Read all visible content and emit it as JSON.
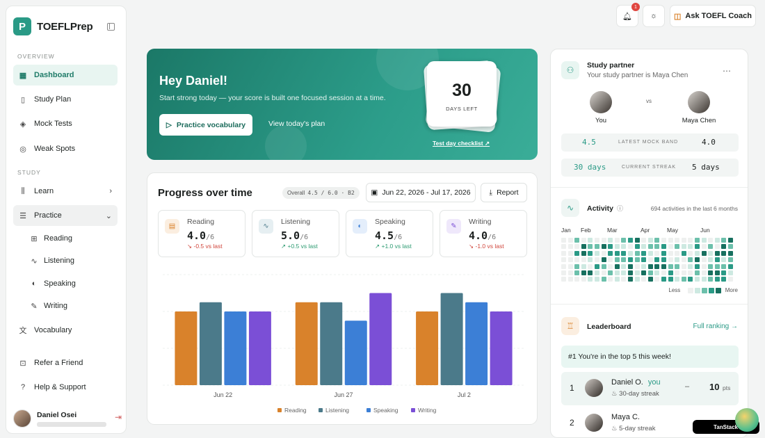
{
  "app": {
    "name": "TOEFLPrep",
    "logo_letter": "P",
    "accent": "#2a9a86"
  },
  "sidebar": {
    "section_overview": "OVERVIEW",
    "section_study": "STUDY",
    "items": [
      {
        "label": "Dashboard",
        "icon": "grid-icon"
      },
      {
        "label": "Study Plan",
        "icon": "map-icon"
      },
      {
        "label": "Mock Tests",
        "icon": "layers-icon"
      },
      {
        "label": "Weak Spots",
        "icon": "target-icon"
      },
      {
        "label": "Learn",
        "icon": "library-icon"
      },
      {
        "label": "Practice",
        "icon": "list-icon"
      },
      {
        "label": "Vocabulary",
        "icon": "translate-icon"
      },
      {
        "label": "Refer a Friend",
        "icon": "gift-icon"
      },
      {
        "label": "Help & Support",
        "icon": "help-icon"
      }
    ],
    "practice_sub": [
      "Reading",
      "Listening",
      "Speaking",
      "Writing"
    ],
    "user_name": "Daniel Osei"
  },
  "topbar": {
    "notifications": "1",
    "coach_label": "Ask TOEFL Coach"
  },
  "hero": {
    "title": "Hey Daniel!",
    "subtitle": "Start strong today — your score is built one focused session at a time.",
    "primary_btn": "Practice vocabulary",
    "secondary_btn": "View today's plan",
    "days_value": "30",
    "days_label": "DAYS LEFT",
    "checklist": "Test day checklist"
  },
  "progress": {
    "title": "Progress over time",
    "overall_label": "Overall",
    "overall_value": "4.5 / 6.0 · B2",
    "date_range": "Jun 22, 2026 - Jul 17, 2026",
    "report": "Report",
    "skills": [
      {
        "name": "Reading",
        "score": "4.0",
        "max": "/6",
        "delta": "↘ -0.5 vs last",
        "color": "#d9822b",
        "bg": "#fbeee0",
        "delta_color": "#d0453b"
      },
      {
        "name": "Listening",
        "score": "5.0",
        "max": "/6",
        "delta": "↗ +0.5 vs last",
        "color": "#4b7a8a",
        "bg": "#e6eff2",
        "delta_color": "#2a9a70"
      },
      {
        "name": "Speaking",
        "score": "4.5",
        "max": "/6",
        "delta": "↗ +1.0 vs last",
        "color": "#3c7fd6",
        "bg": "#e4eefb",
        "delta_color": "#2a9a70"
      },
      {
        "name": "Writing",
        "score": "4.0",
        "max": "/6",
        "delta": "↘ -1.0 vs last",
        "color": "#7b4fd6",
        "bg": "#efe8fb",
        "delta_color": "#d0453b"
      }
    ]
  },
  "chart_data": {
    "type": "bar",
    "categories": [
      "Jun 22",
      "Jun 27",
      "Jul 2"
    ],
    "series": [
      {
        "name": "Reading",
        "values": [
          4.0,
          4.5,
          4.0
        ],
        "color": "#d9822b"
      },
      {
        "name": "Listening",
        "values": [
          4.5,
          4.5,
          5.0
        ],
        "color": "#4b7a8a"
      },
      {
        "name": "Speaking",
        "values": [
          4.0,
          3.5,
          4.5
        ],
        "color": "#3c7fd6"
      },
      {
        "name": "Writing",
        "values": [
          4.0,
          5.0,
          4.0
        ],
        "color": "#7b4fd6"
      }
    ],
    "ylim": [
      0,
      6
    ],
    "legend": "bottom",
    "grid": true
  },
  "partner": {
    "title": "Study partner",
    "subtitle": "Your study partner is Maya Chen",
    "you": "You",
    "vs": "vs",
    "partner_name": "Maya Chen",
    "mock_you": "4.5",
    "mock_label": "LATEST MOCK BAND",
    "mock_partner": "4.0",
    "streak_you": "30 days",
    "streak_label": "CURRENT STREAK",
    "streak_partner": "5 days"
  },
  "activity": {
    "title": "Activity",
    "summary": "694 activities in the last 6 months",
    "months": [
      "Jan",
      "Feb",
      "Mar",
      "Apr",
      "May",
      "Jun"
    ],
    "less": "Less",
    "more": "More"
  },
  "leaderboard": {
    "title": "Leaderboard",
    "full_ranking": "Full ranking →",
    "top5": "#1 You're in the top 5 this week!",
    "rows": [
      {
        "rank": "1",
        "name": "Daniel O.",
        "you": "you",
        "streak": "30-day streak",
        "change": "–",
        "points": "10",
        "unit": "pts"
      },
      {
        "rank": "2",
        "name": "Maya C.",
        "streak": "5-day streak"
      }
    ]
  },
  "devtools": {
    "label": "TanStack"
  }
}
